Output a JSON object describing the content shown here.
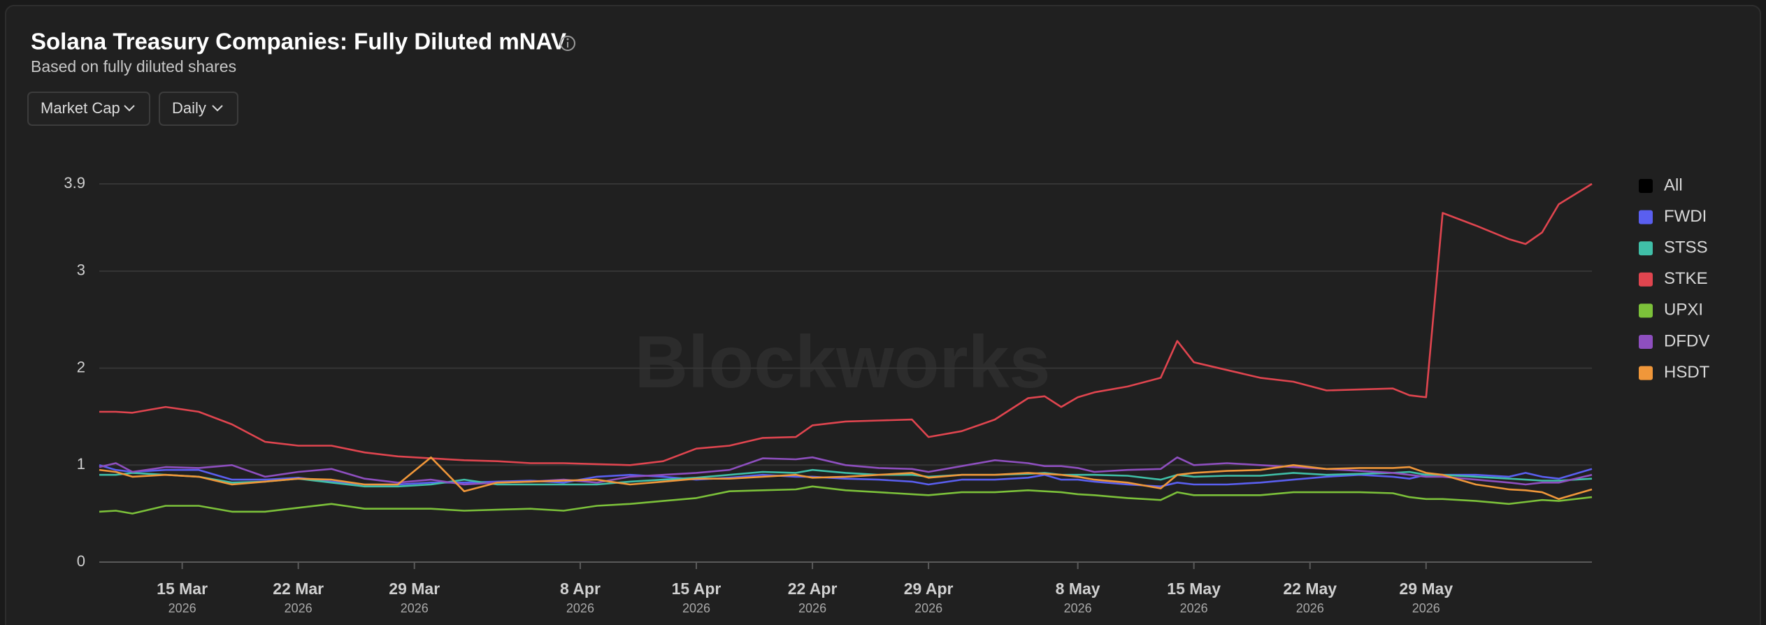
{
  "header": {
    "title": "Solana Treasury Companies: Fully Diluted mNAV",
    "subtitle": "Based on fully diluted shares"
  },
  "controls": {
    "metric": "Market Cap",
    "interval": "Daily"
  },
  "watermark": "Blockworks",
  "chart_data": {
    "type": "line",
    "filter_all": "All",
    "x": [
      "2026-03-10",
      "2026-03-11",
      "2026-03-12",
      "2026-03-14",
      "2026-03-16",
      "2026-03-18",
      "2026-03-20",
      "2026-03-22",
      "2026-03-24",
      "2026-03-26",
      "2026-03-28",
      "2026-03-30",
      "2026-04-01",
      "2026-04-03",
      "2026-04-05",
      "2026-04-07",
      "2026-04-09",
      "2026-04-11",
      "2026-04-13",
      "2026-04-15",
      "2026-04-17",
      "2026-04-19",
      "2026-04-21",
      "2026-04-22",
      "2026-04-24",
      "2026-04-26",
      "2026-04-28",
      "2026-04-29",
      "2026-05-01",
      "2026-05-03",
      "2026-05-05",
      "2026-05-06",
      "2026-05-07",
      "2026-05-08",
      "2026-05-09",
      "2026-05-11",
      "2026-05-13",
      "2026-05-14",
      "2026-05-15",
      "2026-05-17",
      "2026-05-19",
      "2026-05-21",
      "2026-05-23",
      "2026-05-25",
      "2026-05-27",
      "2026-05-28",
      "2026-05-29",
      "2026-05-30",
      "2026-06-01",
      "2026-06-03",
      "2026-06-04",
      "2026-06-05",
      "2026-06-06",
      "2026-06-08"
    ],
    "series": [
      {
        "name": "FWDI",
        "color": "#5a5ff0",
        "values": [
          1.0,
          0.95,
          0.93,
          0.95,
          0.95,
          0.85,
          0.85,
          0.87,
          0.83,
          0.8,
          0.8,
          0.82,
          0.82,
          0.83,
          0.84,
          0.82,
          0.88,
          0.9,
          0.88,
          0.85,
          0.87,
          0.9,
          0.88,
          0.88,
          0.86,
          0.85,
          0.83,
          0.8,
          0.85,
          0.85,
          0.87,
          0.9,
          0.85,
          0.85,
          0.83,
          0.8,
          0.78,
          0.82,
          0.8,
          0.8,
          0.82,
          0.85,
          0.88,
          0.9,
          0.88,
          0.86,
          0.9,
          0.9,
          0.9,
          0.88,
          0.92,
          0.88,
          0.86,
          0.96
        ]
      },
      {
        "name": "STSS",
        "color": "#40bfa8",
        "values": [
          0.9,
          0.9,
          0.92,
          0.9,
          0.88,
          0.82,
          0.83,
          0.86,
          0.82,
          0.78,
          0.78,
          0.8,
          0.85,
          0.8,
          0.8,
          0.8,
          0.8,
          0.83,
          0.85,
          0.87,
          0.9,
          0.93,
          0.92,
          0.95,
          0.92,
          0.9,
          0.9,
          0.88,
          0.9,
          0.9,
          0.91,
          0.92,
          0.9,
          0.9,
          0.9,
          0.89,
          0.85,
          0.9,
          0.88,
          0.89,
          0.89,
          0.92,
          0.9,
          0.91,
          0.92,
          0.93,
          0.9,
          0.9,
          0.88,
          0.86,
          0.85,
          0.84,
          0.84,
          0.86
        ]
      },
      {
        "name": "STKE",
        "color": "#e0454f",
        "values": [
          1.55,
          1.55,
          1.54,
          1.6,
          1.55,
          1.42,
          1.24,
          1.2,
          1.2,
          1.13,
          1.09,
          1.07,
          1.05,
          1.04,
          1.02,
          1.02,
          1.01,
          1.0,
          1.04,
          1.17,
          1.2,
          1.28,
          1.29,
          1.41,
          1.45,
          1.46,
          1.47,
          1.29,
          1.35,
          1.47,
          1.69,
          1.71,
          1.6,
          1.7,
          1.75,
          1.81,
          1.9,
          2.28,
          2.06,
          1.98,
          1.9,
          1.86,
          1.77,
          1.78,
          1.79,
          1.72,
          1.7,
          3.6,
          3.47,
          3.33,
          3.28,
          3.4,
          3.69,
          3.9
        ]
      },
      {
        "name": "UPXI",
        "color": "#7cc13a",
        "values": [
          0.52,
          0.53,
          0.5,
          0.58,
          0.58,
          0.52,
          0.52,
          0.56,
          0.6,
          0.55,
          0.55,
          0.55,
          0.53,
          0.54,
          0.55,
          0.53,
          0.58,
          0.6,
          0.63,
          0.66,
          0.73,
          0.74,
          0.75,
          0.78,
          0.74,
          0.72,
          0.7,
          0.69,
          0.72,
          0.72,
          0.74,
          0.73,
          0.72,
          0.7,
          0.69,
          0.66,
          0.64,
          0.72,
          0.69,
          0.69,
          0.69,
          0.72,
          0.72,
          0.72,
          0.71,
          0.67,
          0.65,
          0.65,
          0.63,
          0.6,
          0.62,
          0.64,
          0.63,
          0.67
        ]
      },
      {
        "name": "DFDV",
        "color": "#8e4fbf",
        "values": [
          0.98,
          1.02,
          0.93,
          0.98,
          0.97,
          1.0,
          0.88,
          0.93,
          0.96,
          0.86,
          0.82,
          0.85,
          0.8,
          0.82,
          0.83,
          0.85,
          0.82,
          0.88,
          0.9,
          0.92,
          0.95,
          1.07,
          1.06,
          1.08,
          1.0,
          0.97,
          0.96,
          0.93,
          0.99,
          1.05,
          1.02,
          0.99,
          0.99,
          0.97,
          0.93,
          0.95,
          0.96,
          1.08,
          1.0,
          1.02,
          1.0,
          0.98,
          0.96,
          0.94,
          0.92,
          0.9,
          0.88,
          0.88,
          0.85,
          0.82,
          0.8,
          0.82,
          0.82,
          0.9
        ]
      },
      {
        "name": "HSDT",
        "color": "#f0973a",
        "values": [
          0.95,
          0.93,
          0.88,
          0.9,
          0.88,
          0.8,
          0.83,
          0.86,
          0.85,
          0.8,
          0.8,
          1.08,
          0.73,
          0.82,
          0.83,
          0.84,
          0.85,
          0.8,
          0.83,
          0.86,
          0.86,
          0.88,
          0.9,
          0.87,
          0.88,
          0.9,
          0.92,
          0.87,
          0.9,
          0.9,
          0.92,
          0.91,
          0.9,
          0.88,
          0.85,
          0.82,
          0.76,
          0.9,
          0.92,
          0.94,
          0.95,
          1.0,
          0.96,
          0.97,
          0.97,
          0.98,
          0.92,
          0.9,
          0.8,
          0.75,
          0.74,
          0.72,
          0.65,
          0.75
        ]
      }
    ],
    "xlim": [
      "2026-03-10",
      "2026-06-08"
    ],
    "xticks": [
      {
        "value": "2026-03-15",
        "label": "15 Mar",
        "year": "2026"
      },
      {
        "value": "2026-03-22",
        "label": "22 Mar",
        "year": "2026"
      },
      {
        "value": "2026-03-29",
        "label": "29 Mar",
        "year": "2026"
      },
      {
        "value": "2026-04-08",
        "label": "8 Apr",
        "year": "2026"
      },
      {
        "value": "2026-04-15",
        "label": "15 Apr",
        "year": "2026"
      },
      {
        "value": "2026-04-22",
        "label": "22 Apr",
        "year": "2026"
      },
      {
        "value": "2026-04-29",
        "label": "29 Apr",
        "year": "2026"
      },
      {
        "value": "2026-05-08",
        "label": "8 May",
        "year": "2026"
      },
      {
        "value": "2026-05-15",
        "label": "15 May",
        "year": "2026"
      },
      {
        "value": "2026-05-22",
        "label": "22 May",
        "year": "2026"
      },
      {
        "value": "2026-05-29",
        "label": "29 May",
        "year": "2026"
      }
    ],
    "ylim": [
      0,
      3.9
    ],
    "yticks": [
      0,
      1,
      2,
      3,
      3.9
    ],
    "grid": true
  }
}
